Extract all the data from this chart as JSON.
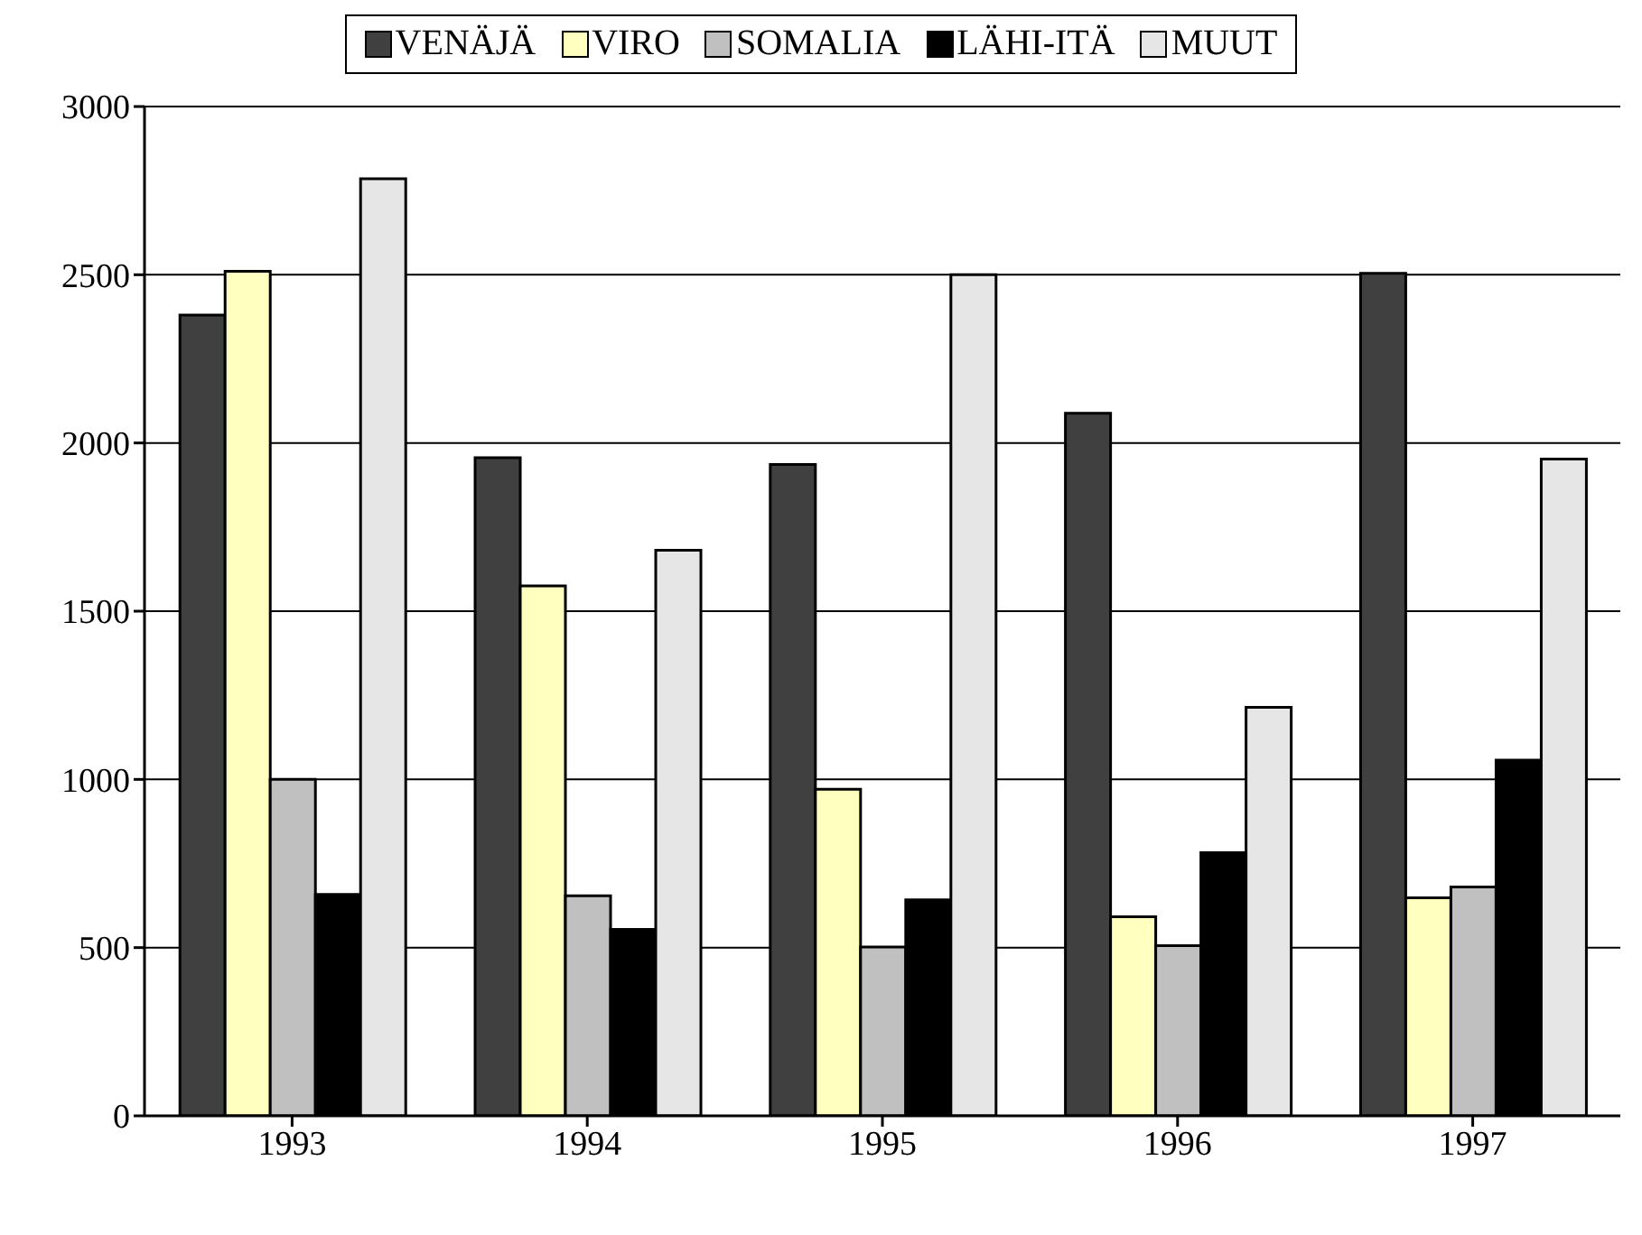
{
  "chart_data": {
    "type": "bar",
    "categories": [
      "1993",
      "1994",
      "1995",
      "1996",
      "1997"
    ],
    "series": [
      {
        "name": "VENÄJÄ",
        "color": "#404040",
        "values": [
          2380,
          1956,
          1936,
          2088,
          2504
        ]
      },
      {
        "name": "VIRO",
        "color": "#ffffc0",
        "values": [
          2510,
          1575,
          971,
          592,
          648
        ]
      },
      {
        "name": "SOMALIA",
        "color": "#c0c0c0",
        "values": [
          1000,
          654,
          502,
          506,
          680
        ]
      },
      {
        "name": "LÄHI-ITÄ",
        "color": "#000000",
        "values": [
          658,
          554,
          642,
          782,
          1057
        ]
      },
      {
        "name": "MUUT",
        "color": "#e6e6e6",
        "values": [
          2785,
          1681,
          2500,
          1214,
          1952
        ]
      }
    ],
    "ylim": [
      0,
      3000
    ],
    "yticks": [
      0,
      500,
      1000,
      1500,
      2000,
      2500,
      3000
    ],
    "grid": "y",
    "legend": "top"
  }
}
